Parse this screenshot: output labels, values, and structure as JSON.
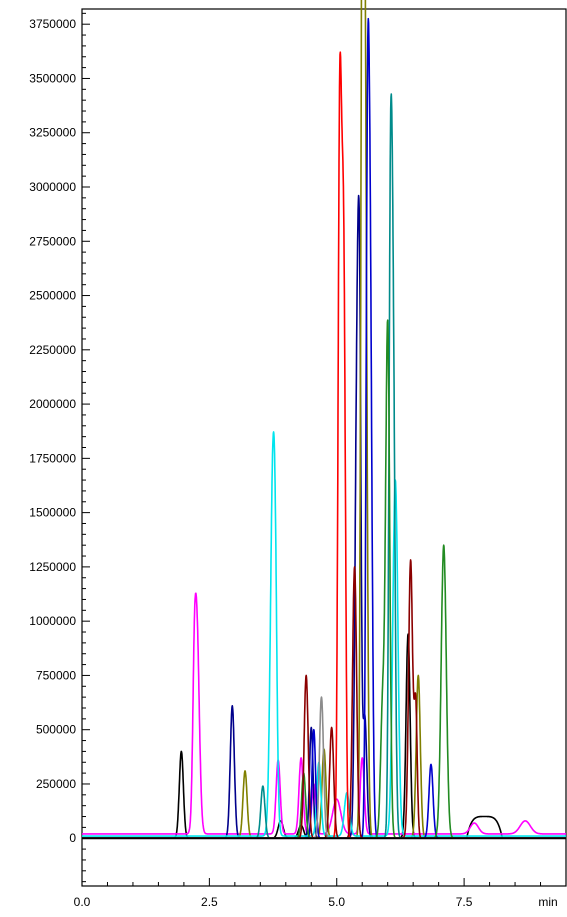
{
  "chart_data": {
    "type": "line",
    "title": "",
    "xlabel": "",
    "ylabel": "",
    "x_unit_label": "min",
    "xlim": [
      0.0,
      9.5
    ],
    "ylim": [
      -220000,
      3820000
    ],
    "x_ticks": [
      "0.0",
      "2.5",
      "5.0",
      "7.5"
    ],
    "x_tick_values": [
      0.0,
      2.5,
      5.0,
      7.5
    ],
    "y_ticks": [
      "3750000",
      "3500000",
      "3250000",
      "3000000",
      "2750000",
      "2500000",
      "2250000",
      "2000000",
      "1750000",
      "1500000",
      "1250000",
      "1000000",
      "750000",
      "500000",
      "250000",
      "0"
    ],
    "y_tick_values": [
      3750000,
      3500000,
      3250000,
      3000000,
      2750000,
      2500000,
      2250000,
      2000000,
      1750000,
      1500000,
      1250000,
      1000000,
      750000,
      500000,
      250000,
      0
    ],
    "grid": false,
    "legend": "none",
    "series": [
      {
        "color": "#000000",
        "baseline": 0,
        "peaks": [
          [
            1.95,
            400000,
            0.04
          ],
          [
            6.4,
            940000,
            0.04
          ],
          [
            3.9,
            80000,
            0.05
          ],
          [
            4.3,
            60000,
            0.05
          ]
        ],
        "humps": [
          [
            7.9,
            100000,
            0.7
          ]
        ]
      },
      {
        "color": "#ff00ff",
        "baseline": 20000,
        "peaks": [
          [
            2.25,
            990000,
            0.05
          ],
          [
            2.2,
            320000,
            0.03
          ],
          [
            3.85,
            340000,
            0.04
          ],
          [
            4.3,
            350000,
            0.04
          ],
          [
            4.55,
            230000,
            0.04
          ],
          [
            5.0,
            160000,
            0.08
          ],
          [
            5.5,
            350000,
            0.04
          ],
          [
            7.7,
            50000,
            0.08
          ],
          [
            8.7,
            60000,
            0.1
          ]
        ],
        "humps": []
      },
      {
        "color": "#00008b",
        "baseline": 0,
        "peaks": [
          [
            2.95,
            610000,
            0.04
          ],
          [
            4.5,
            510000,
            0.035
          ],
          [
            5.4,
            2110000,
            0.04
          ],
          [
            5.45,
            1700000,
            0.03
          ],
          [
            5.55,
            560000,
            0.04
          ]
        ],
        "humps": []
      },
      {
        "color": "#808000",
        "baseline": 0,
        "peaks": [
          [
            3.2,
            310000,
            0.04
          ],
          [
            5.55,
            3650000,
            0.04
          ],
          [
            5.5,
            3240000,
            0.03
          ],
          [
            6.6,
            750000,
            0.04
          ],
          [
            4.75,
            410000,
            0.04
          ]
        ],
        "humps": []
      },
      {
        "color": "#00e5ee",
        "baseline": 10000,
        "peaks": [
          [
            3.75,
            1740000,
            0.05
          ],
          [
            3.8,
            380000,
            0.03
          ],
          [
            6.15,
            1640000,
            0.05
          ],
          [
            4.65,
            340000,
            0.04
          ],
          [
            5.2,
            200000,
            0.05
          ]
        ],
        "humps": []
      },
      {
        "color": "#008b8b",
        "baseline": 0,
        "peaks": [
          [
            3.55,
            240000,
            0.04
          ],
          [
            6.1,
            2420000,
            0.04
          ],
          [
            6.05,
            2000000,
            0.03
          ]
        ],
        "humps": []
      },
      {
        "color": "#ff0000",
        "baseline": 0,
        "peaks": [
          [
            5.1,
            2410000,
            0.04
          ],
          [
            5.05,
            2200000,
            0.03
          ],
          [
            5.15,
            1400000,
            0.03
          ]
        ],
        "humps": []
      },
      {
        "color": "#0000cd",
        "baseline": 0,
        "peaks": [
          [
            5.65,
            2710000,
            0.04
          ],
          [
            5.6,
            2160000,
            0.03
          ],
          [
            6.85,
            340000,
            0.04
          ],
          [
            4.55,
            500000,
            0.035
          ]
        ],
        "humps": []
      },
      {
        "color": "#228b22",
        "baseline": 0,
        "peaks": [
          [
            6.0,
            2360000,
            0.04
          ],
          [
            7.1,
            1350000,
            0.05
          ],
          [
            4.35,
            300000,
            0.04
          ],
          [
            5.9,
            600000,
            0.04
          ]
        ],
        "humps": []
      },
      {
        "color": "#8b0000",
        "baseline": 0,
        "peaks": [
          [
            4.4,
            750000,
            0.04
          ],
          [
            4.9,
            510000,
            0.04
          ],
          [
            5.35,
            1250000,
            0.04
          ],
          [
            6.45,
            1280000,
            0.04
          ],
          [
            6.55,
            600000,
            0.03
          ]
        ],
        "humps": []
      },
      {
        "color": "#8c8c8c",
        "baseline": 0,
        "peaks": [
          [
            4.7,
            650000,
            0.04
          ]
        ],
        "humps": []
      }
    ]
  }
}
